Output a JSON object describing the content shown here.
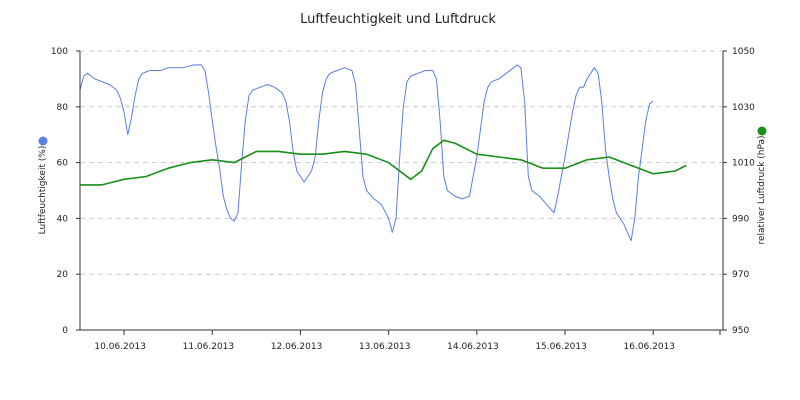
{
  "chart_data": {
    "type": "line",
    "title": "Luftfeuchtigkeit und Luftdruck",
    "ylabel_left": "Luftfeuchtigkeit (%)",
    "ylabel_right": "relativer Luftdruck (hPa)",
    "ylim_left": [
      0,
      100
    ],
    "ylim_right": [
      950,
      1050
    ],
    "yticks_left": [
      "0",
      "20",
      "40",
      "60",
      "80",
      "100"
    ],
    "yticks_right": [
      "950",
      "970",
      "990",
      "1010",
      "1030",
      "1050"
    ],
    "x_range": [
      "2013-06-09 12:00",
      "2013-06-16 19:00"
    ],
    "categories": [
      "10.06.2013",
      "11.06.2013",
      "12.06.2013",
      "13.06.2013",
      "14.06.2013",
      "15.06.2013",
      "16.06.2013"
    ],
    "grid": true,
    "series": [
      {
        "name": "",
        "axis": "left",
        "color": "#5b7fe0",
        "points": [
          [
            "2013-06-09 12:00",
            86
          ],
          [
            "2013-06-09 13:00",
            91
          ],
          [
            "2013-06-09 14:00",
            92
          ],
          [
            "2013-06-09 15:00",
            91
          ],
          [
            "2013-06-09 16:00",
            90
          ],
          [
            "2013-06-09 18:00",
            89
          ],
          [
            "2013-06-09 20:00",
            88
          ],
          [
            "2013-06-09 22:00",
            86
          ],
          [
            "2013-06-09 23:00",
            83
          ],
          [
            "2013-06-10 00:00",
            78
          ],
          [
            "2013-06-10 01:00",
            70
          ],
          [
            "2013-06-10 02:00",
            76
          ],
          [
            "2013-06-10 03:00",
            84
          ],
          [
            "2013-06-10 04:00",
            90
          ],
          [
            "2013-06-10 05:00",
            92
          ],
          [
            "2013-06-10 07:00",
            93
          ],
          [
            "2013-06-10 10:00",
            93
          ],
          [
            "2013-06-10 12:00",
            94
          ],
          [
            "2013-06-10 16:00",
            94
          ],
          [
            "2013-06-10 19:00",
            95
          ],
          [
            "2013-06-10 21:00",
            95
          ],
          [
            "2013-06-10 22:00",
            93
          ],
          [
            "2013-06-10 23:00",
            85
          ],
          [
            "2013-06-11 00:00",
            75
          ],
          [
            "2013-06-11 01:00",
            66
          ],
          [
            "2013-06-11 02:00",
            58
          ],
          [
            "2013-06-11 03:00",
            48
          ],
          [
            "2013-06-11 04:00",
            43
          ],
          [
            "2013-06-11 05:00",
            40
          ],
          [
            "2013-06-11 06:00",
            39
          ],
          [
            "2013-06-11 07:00",
            42
          ],
          [
            "2013-06-11 08:00",
            60
          ],
          [
            "2013-06-11 09:00",
            75
          ],
          [
            "2013-06-11 10:00",
            84
          ],
          [
            "2013-06-11 11:00",
            86
          ],
          [
            "2013-06-11 13:00",
            87
          ],
          [
            "2013-06-11 15:00",
            88
          ],
          [
            "2013-06-11 17:00",
            87
          ],
          [
            "2013-06-11 19:00",
            85
          ],
          [
            "2013-06-11 20:00",
            82
          ],
          [
            "2013-06-11 21:00",
            75
          ],
          [
            "2013-06-11 22:00",
            64
          ],
          [
            "2013-06-11 23:00",
            57
          ],
          [
            "2013-06-12 00:00",
            55
          ],
          [
            "2013-06-12 01:00",
            53
          ],
          [
            "2013-06-12 02:00",
            55
          ],
          [
            "2013-06-12 03:00",
            57
          ],
          [
            "2013-06-12 04:00",
            62
          ],
          [
            "2013-06-12 05:00",
            75
          ],
          [
            "2013-06-12 06:00",
            85
          ],
          [
            "2013-06-12 07:00",
            90
          ],
          [
            "2013-06-12 08:00",
            92
          ],
          [
            "2013-06-12 10:00",
            93
          ],
          [
            "2013-06-12 12:00",
            94
          ],
          [
            "2013-06-12 14:00",
            93
          ],
          [
            "2013-06-12 15:00",
            88
          ],
          [
            "2013-06-12 16:00",
            72
          ],
          [
            "2013-06-12 17:00",
            55
          ],
          [
            "2013-06-12 18:00",
            50
          ],
          [
            "2013-06-12 20:00",
            47
          ],
          [
            "2013-06-12 22:00",
            45
          ],
          [
            "2013-06-13 00:00",
            40
          ],
          [
            "2013-06-13 01:00",
            35
          ],
          [
            "2013-06-13 02:00",
            40
          ],
          [
            "2013-06-13 03:00",
            62
          ],
          [
            "2013-06-13 04:00",
            80
          ],
          [
            "2013-06-13 05:00",
            89
          ],
          [
            "2013-06-13 06:00",
            91
          ],
          [
            "2013-06-13 08:00",
            92
          ],
          [
            "2013-06-13 10:00",
            93
          ],
          [
            "2013-06-13 12:00",
            93
          ],
          [
            "2013-06-13 13:00",
            90
          ],
          [
            "2013-06-13 14:00",
            75
          ],
          [
            "2013-06-13 15:00",
            55
          ],
          [
            "2013-06-13 16:00",
            50
          ],
          [
            "2013-06-13 18:00",
            48
          ],
          [
            "2013-06-13 20:00",
            47
          ],
          [
            "2013-06-13 22:00",
            48
          ],
          [
            "2013-06-13 23:00",
            55
          ],
          [
            "2013-06-14 00:00",
            62
          ],
          [
            "2013-06-14 01:00",
            72
          ],
          [
            "2013-06-14 02:00",
            82
          ],
          [
            "2013-06-14 03:00",
            87
          ],
          [
            "2013-06-14 04:00",
            89
          ],
          [
            "2013-06-14 06:00",
            90
          ],
          [
            "2013-06-14 08:00",
            92
          ],
          [
            "2013-06-14 10:00",
            94
          ],
          [
            "2013-06-14 11:00",
            95
          ],
          [
            "2013-06-14 12:00",
            94
          ],
          [
            "2013-06-14 13:00",
            82
          ],
          [
            "2013-06-14 14:00",
            55
          ],
          [
            "2013-06-14 15:00",
            50
          ],
          [
            "2013-06-14 17:00",
            48
          ],
          [
            "2013-06-14 19:00",
            45
          ],
          [
            "2013-06-14 21:00",
            42
          ],
          [
            "2013-06-14 22:00",
            48
          ],
          [
            "2013-06-14 23:00",
            55
          ],
          [
            "2013-06-15 00:00",
            62
          ],
          [
            "2013-06-15 01:00",
            70
          ],
          [
            "2013-06-15 02:00",
            78
          ],
          [
            "2013-06-15 03:00",
            84
          ],
          [
            "2013-06-15 04:00",
            87
          ],
          [
            "2013-06-15 05:00",
            87
          ],
          [
            "2013-06-15 06:00",
            90
          ],
          [
            "2013-06-15 07:00",
            92
          ],
          [
            "2013-06-15 08:00",
            94
          ],
          [
            "2013-06-15 09:00",
            92
          ],
          [
            "2013-06-15 10:00",
            82
          ],
          [
            "2013-06-15 11:00",
            65
          ],
          [
            "2013-06-15 12:00",
            55
          ],
          [
            "2013-06-15 13:00",
            47
          ],
          [
            "2013-06-15 14:00",
            42
          ],
          [
            "2013-06-15 15:00",
            40
          ],
          [
            "2013-06-15 16:00",
            38
          ],
          [
            "2013-06-15 17:00",
            35
          ],
          [
            "2013-06-15 18:00",
            32
          ],
          [
            "2013-06-15 19:00",
            40
          ],
          [
            "2013-06-15 20:00",
            55
          ],
          [
            "2013-06-15 21:00",
            65
          ],
          [
            "2013-06-15 22:00",
            75
          ],
          [
            "2013-06-15 23:00",
            81
          ],
          [
            "2013-06-16 00:00",
            82
          ]
        ]
      },
      {
        "name": "",
        "axis": "right",
        "color": "#1a8f1a",
        "points": [
          [
            "2013-06-09 12:00",
            1002
          ],
          [
            "2013-06-09 18:00",
            1002
          ],
          [
            "2013-06-10 00:00",
            1004
          ],
          [
            "2013-06-10 06:00",
            1005
          ],
          [
            "2013-06-10 12:00",
            1008
          ],
          [
            "2013-06-10 18:00",
            1010
          ],
          [
            "2013-06-11 00:00",
            1011
          ],
          [
            "2013-06-11 06:00",
            1010
          ],
          [
            "2013-06-11 09:00",
            1012
          ],
          [
            "2013-06-11 12:00",
            1014
          ],
          [
            "2013-06-11 18:00",
            1014
          ],
          [
            "2013-06-12 00:00",
            1013
          ],
          [
            "2013-06-12 06:00",
            1013
          ],
          [
            "2013-06-12 12:00",
            1014
          ],
          [
            "2013-06-12 18:00",
            1013
          ],
          [
            "2013-06-13 00:00",
            1010
          ],
          [
            "2013-06-13 06:00",
            1004
          ],
          [
            "2013-06-13 09:00",
            1007
          ],
          [
            "2013-06-13 12:00",
            1015
          ],
          [
            "2013-06-13 15:00",
            1018
          ],
          [
            "2013-06-13 18:00",
            1017
          ],
          [
            "2013-06-14 00:00",
            1013
          ],
          [
            "2013-06-14 06:00",
            1012
          ],
          [
            "2013-06-14 12:00",
            1011
          ],
          [
            "2013-06-14 18:00",
            1008
          ],
          [
            "2013-06-15 00:00",
            1008
          ],
          [
            "2013-06-15 06:00",
            1011
          ],
          [
            "2013-06-15 12:00",
            1012
          ],
          [
            "2013-06-15 18:00",
            1009
          ],
          [
            "2013-06-16 00:00",
            1006
          ],
          [
            "2013-06-16 06:00",
            1007
          ],
          [
            "2013-06-16 09:00",
            1009
          ]
        ]
      }
    ],
    "legend": {
      "left_marker_color": "#5b7fe0",
      "right_marker_color": "#1a8f1a"
    }
  }
}
